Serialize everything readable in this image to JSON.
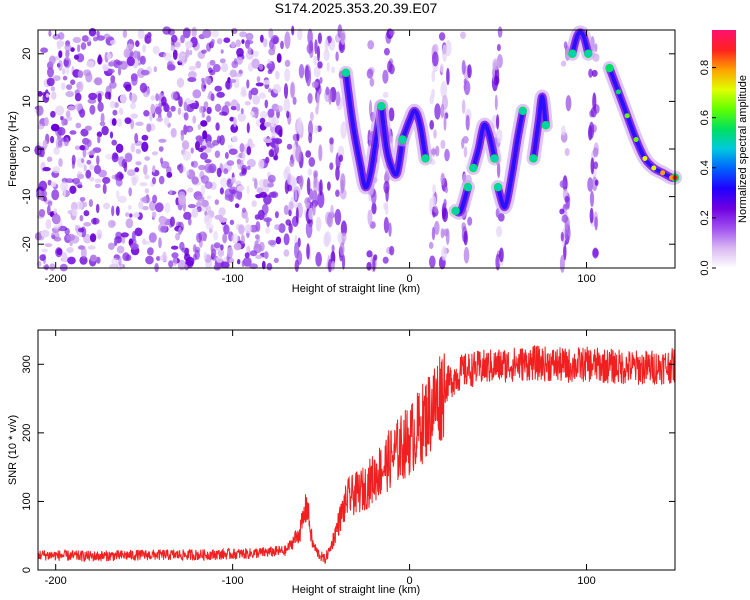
{
  "title": "S174.2025.353.20.39.E07",
  "chart_data": [
    {
      "type": "heatmap",
      "xlabel": "Height of straight line (km)",
      "ylabel": "Frequency (Hz)",
      "xlim": [
        -210,
        150
      ],
      "ylim": [
        -25,
        25
      ],
      "xticks": [
        -200,
        -100,
        0,
        100
      ],
      "yticks": [
        -20,
        -10,
        0,
        10,
        20
      ],
      "colorbar": {
        "label": "Normalized spectral amplitude",
        "range": [
          0.0,
          0.95
        ],
        "ticks": [
          "0.0",
          "0.2",
          "0.4",
          "0.6",
          "0.8"
        ],
        "colors": [
          "#ffffff",
          "#d9b8f2",
          "#a050f0",
          "#7000e0",
          "#2000ff",
          "#0060ff",
          "#00c8e0",
          "#00e060",
          "#60ff00",
          "#e0ff00",
          "#ffa000",
          "#ff2020",
          "#ff1070"
        ]
      },
      "ridges": [
        {
          "x": [
            -36,
            -32,
            -28,
            -25,
            -22,
            -19,
            -16
          ],
          "y": [
            16,
            5,
            -3,
            -8,
            -5,
            2,
            9
          ]
        },
        {
          "x": [
            -16,
            -13,
            -10,
            -7,
            -4
          ],
          "y": [
            9,
            0,
            -4,
            -5,
            2
          ]
        },
        {
          "x": [
            -4,
            0,
            3,
            6,
            9
          ],
          "y": [
            2,
            6,
            8,
            5,
            -2
          ]
        },
        {
          "x": [
            26,
            29,
            33
          ],
          "y": [
            -13,
            -13,
            -8
          ]
        },
        {
          "x": [
            36,
            39,
            42,
            45,
            48
          ],
          "y": [
            -4,
            0,
            5,
            3,
            -2
          ]
        },
        {
          "x": [
            50,
            53,
            55,
            58,
            61,
            64
          ],
          "y": [
            -8,
            -12,
            -11,
            -5,
            2,
            8
          ]
        },
        {
          "x": [
            70,
            73,
            75,
            77
          ],
          "y": [
            -2,
            6,
            11,
            5
          ]
        },
        {
          "x": [
            92,
            95,
            98,
            101
          ],
          "y": [
            20,
            24,
            24,
            20
          ]
        },
        {
          "x": [
            113,
            118,
            123,
            128,
            133,
            138,
            143,
            148,
            150
          ],
          "y": [
            17,
            12,
            7,
            2,
            -2,
            -4,
            -5,
            -6,
            -6
          ]
        }
      ],
      "dense_region": [
        -210,
        -72
      ]
    },
    {
      "type": "line",
      "xlabel": "Height of straight line (km)",
      "ylabel": "SNR (10 * v/v)",
      "xlim": [
        -210,
        150
      ],
      "ylim": [
        0,
        350
      ],
      "xticks": [
        -200,
        -100,
        0,
        100
      ],
      "yticks": [
        0,
        100,
        200,
        300
      ],
      "color": "#f02020",
      "series": [
        {
          "x": [
            -210,
            -180,
            -150,
            -120,
            -90,
            -70,
            -62,
            -58,
            -55,
            -52,
            -48,
            -45,
            -40,
            -35,
            -30,
            -25,
            -20,
            -15,
            -10,
            -5,
            0,
            5,
            10,
            15,
            20,
            25,
            30,
            40,
            50,
            60,
            70,
            80,
            90,
            100,
            110,
            120,
            130,
            140,
            150
          ],
          "values": [
            22,
            20,
            22,
            22,
            24,
            28,
            55,
            95,
            40,
            25,
            15,
            30,
            70,
            105,
            112,
            120,
            135,
            150,
            165,
            178,
            190,
            205,
            225,
            245,
            268,
            280,
            290,
            295,
            298,
            300,
            302,
            300,
            298,
            300,
            298,
            296,
            295,
            296,
            298
          ]
        }
      ]
    }
  ]
}
